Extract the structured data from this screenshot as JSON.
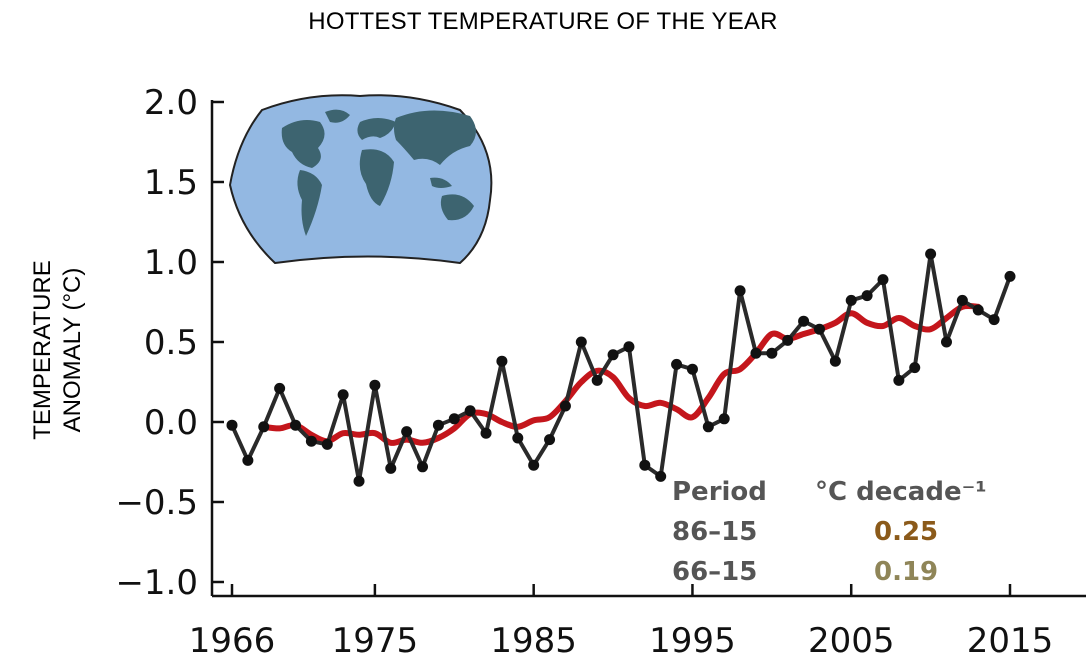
{
  "chart_data": {
    "type": "line",
    "title": "HOTTEST TEMPERATURE OF THE YEAR",
    "ylabel_line1": "TEMPERATURE",
    "ylabel_line2": "ANOMALY (°C)",
    "xlabel": "",
    "x_ticks": [
      "1966",
      "1975",
      "1985",
      "1995",
      "2005",
      "2015"
    ],
    "y_ticks": [
      "2.0",
      "1.5",
      "1.0",
      "0.5",
      "0.0",
      "−0.5",
      "−1.0"
    ],
    "ylim": [
      -1.0,
      2.0
    ],
    "xlim": [
      1966,
      2015
    ],
    "grid": false,
    "series": [
      {
        "style": "points-and-line",
        "color": "#2a2a2a",
        "x": [
          1966,
          1967,
          1968,
          1969,
          1970,
          1971,
          1972,
          1973,
          1974,
          1975,
          1976,
          1977,
          1978,
          1979,
          1980,
          1981,
          1982,
          1983,
          1984,
          1985,
          1986,
          1987,
          1988,
          1989,
          1990,
          1991,
          1992,
          1993,
          1994,
          1995,
          1996,
          1997,
          1998,
          1999,
          2000,
          2001,
          2002,
          2003,
          2004,
          2005,
          2006,
          2007,
          2008,
          2009,
          2010,
          2011,
          2012,
          2013,
          2014,
          2015
        ],
        "values": [
          -0.02,
          -0.24,
          -0.03,
          0.21,
          -0.02,
          -0.12,
          -0.14,
          0.17,
          -0.37,
          0.23,
          -0.29,
          -0.06,
          -0.28,
          -0.02,
          0.02,
          0.07,
          -0.07,
          0.38,
          -0.1,
          -0.27,
          -0.11,
          0.1,
          0.5,
          0.26,
          0.42,
          0.47,
          -0.27,
          -0.34,
          0.36,
          0.33,
          -0.03,
          0.02,
          0.82,
          0.43,
          0.43,
          0.51,
          0.63,
          0.58,
          0.38,
          0.76,
          0.79,
          0.89,
          0.26,
          0.34,
          1.05,
          0.5,
          0.76,
          0.7,
          0.64,
          0.91
        ]
      },
      {
        "style": "smoothed-line",
        "color": "#c4161c",
        "x": [
          1968,
          1969,
          1970,
          1971,
          1972,
          1973,
          1974,
          1975,
          1976,
          1977,
          1978,
          1979,
          1980,
          1981,
          1982,
          1983,
          1984,
          1985,
          1986,
          1987,
          1988,
          1989,
          1990,
          1991,
          1992,
          1993,
          1994,
          1995,
          1996,
          1997,
          1998,
          1999,
          2000,
          2001,
          2002,
          2003,
          2004,
          2005,
          2006,
          2007,
          2008,
          2009,
          2010,
          2011,
          2012,
          2013
        ],
        "values": [
          -0.03,
          -0.04,
          -0.02,
          -0.08,
          -0.12,
          -0.07,
          -0.08,
          -0.07,
          -0.13,
          -0.11,
          -0.13,
          -0.1,
          -0.04,
          0.05,
          0.05,
          0.0,
          -0.03,
          0.01,
          0.03,
          0.13,
          0.25,
          0.32,
          0.28,
          0.15,
          0.1,
          0.12,
          0.08,
          0.03,
          0.15,
          0.3,
          0.33,
          0.43,
          0.55,
          0.52,
          0.55,
          0.58,
          0.62,
          0.68,
          0.62,
          0.6,
          0.65,
          0.6,
          0.58,
          0.65,
          0.72,
          0.72
        ]
      }
    ],
    "legend": {
      "header_period": "Period",
      "header_rate": "°C decade⁻¹",
      "rows": [
        {
          "period": "86–15",
          "rate": "0.25",
          "color": "#8b5a1a"
        },
        {
          "period": "66–15",
          "rate": "0.19",
          "color": "#8f8558"
        }
      ],
      "label_color": "#555555"
    },
    "inset_map": {
      "icon": "world-map-icon",
      "ocean_color": "#93b8e2",
      "land_color": "#3d6470"
    }
  }
}
